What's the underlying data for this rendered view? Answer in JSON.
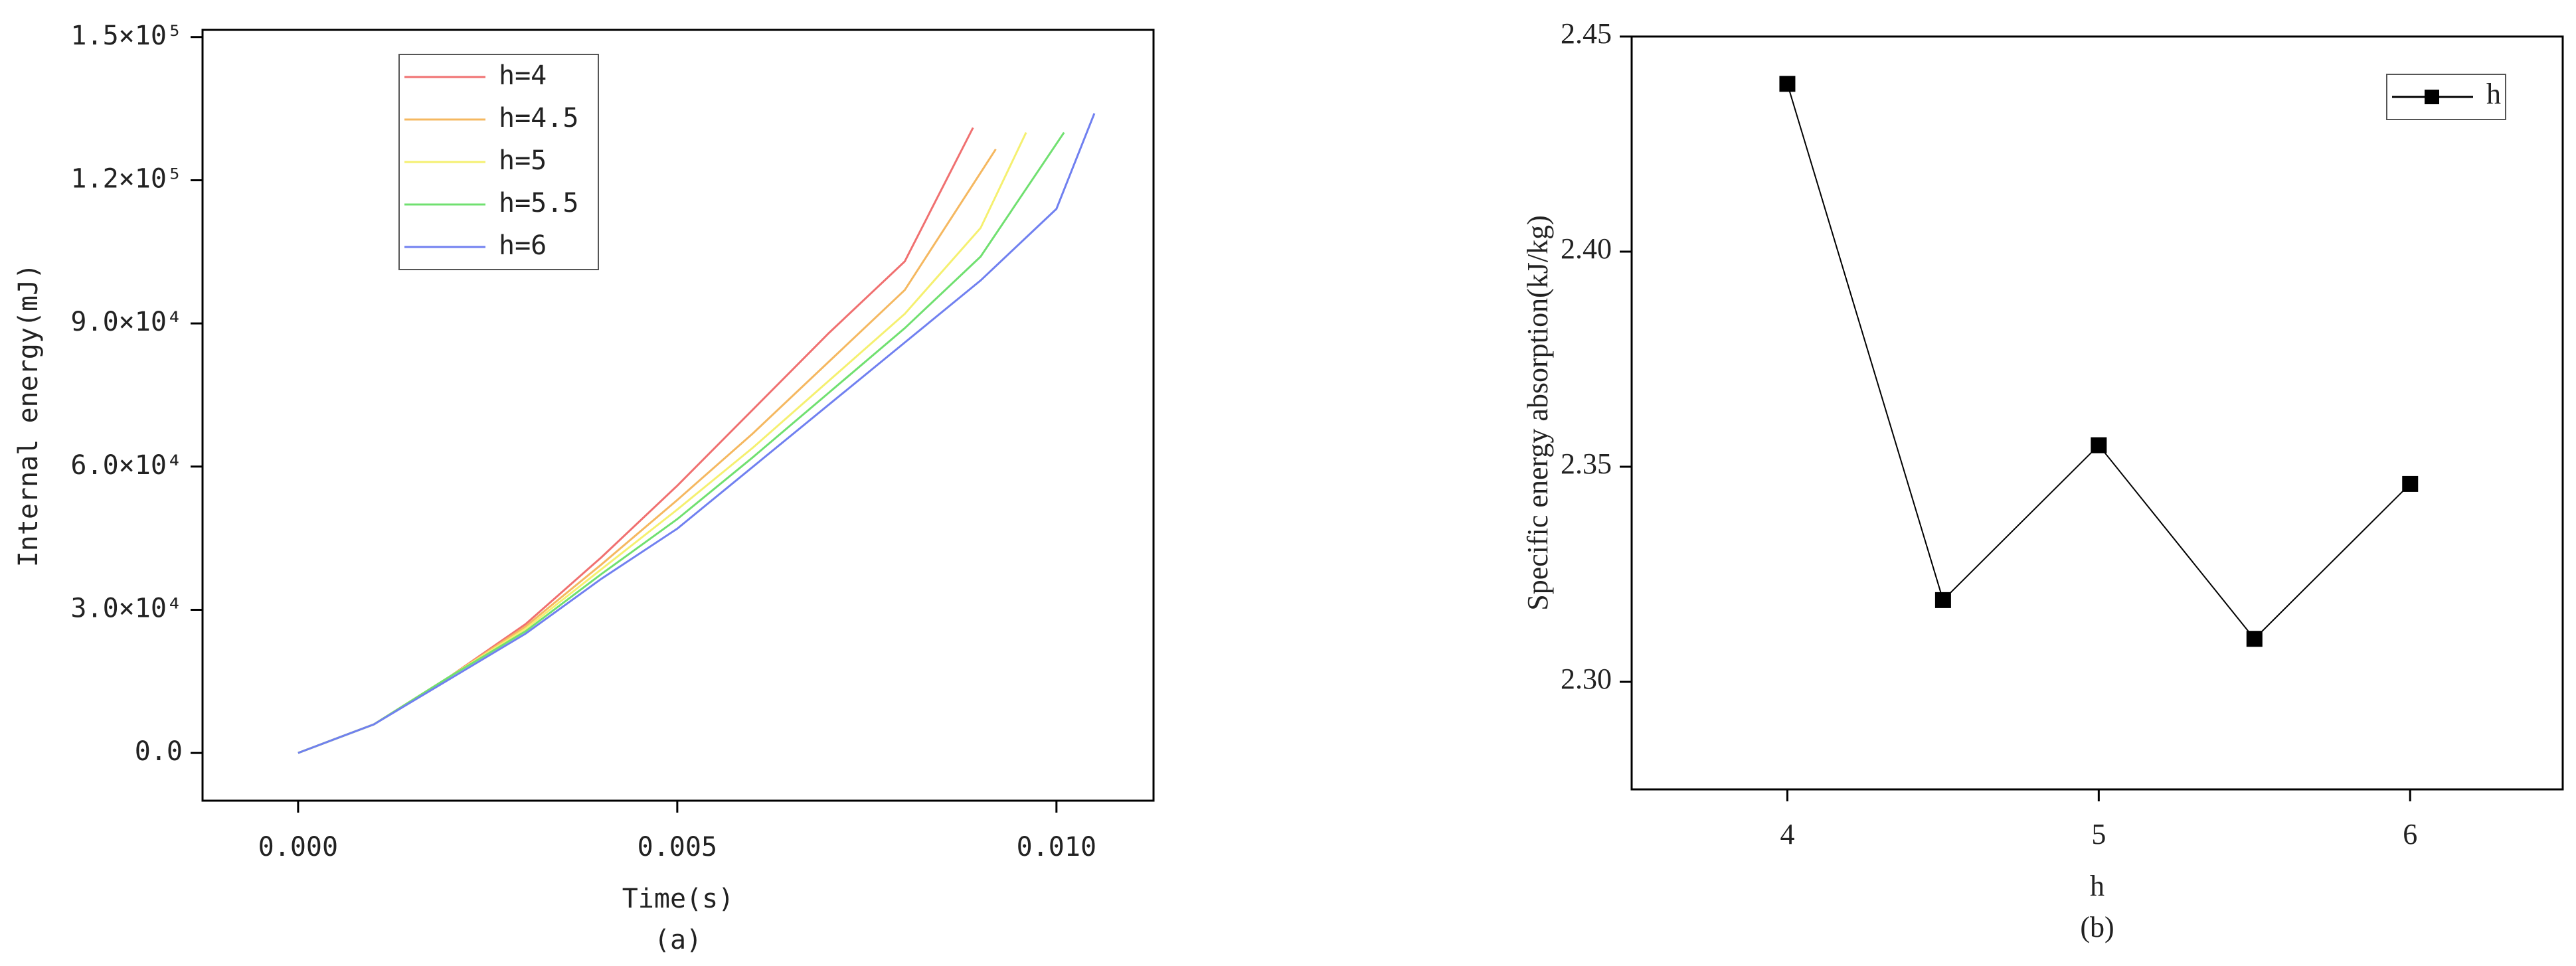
{
  "chart_data": [
    {
      "type": "line",
      "caption": "(a)",
      "x_label": "Time(s)",
      "y_label": "Internal energy(mJ)",
      "xlim": [
        -0.00126,
        0.01128
      ],
      "ylim": [
        -10000,
        151500
      ],
      "xticks": [
        {
          "value": 0,
          "label": "0.000"
        },
        {
          "value": 0.005,
          "label": "0.005"
        },
        {
          "value": 0.01,
          "label": "0.010"
        }
      ],
      "yticks": [
        {
          "value": 0,
          "label": "0.0"
        },
        {
          "value": 30000,
          "label": "3.0×10⁴"
        },
        {
          "value": 60000,
          "label": "6.0×10⁴"
        },
        {
          "value": 90000,
          "label": "9.0×10⁴"
        },
        {
          "value": 120000,
          "label": "1.2×10⁵"
        },
        {
          "value": 150000,
          "label": "1.5×10⁵"
        }
      ],
      "legend": "upper-left",
      "series": [
        {
          "name": "h=4",
          "color": "#f07070",
          "x": [
            0,
            0.001,
            0.002,
            0.003,
            0.004,
            0.005,
            0.006,
            0.007,
            0.008,
            0.0089
          ],
          "values": [
            0,
            6000,
            16000,
            27000,
            41000,
            56000,
            72000,
            88000,
            103000,
            131000
          ]
        },
        {
          "name": "h=4.5",
          "color": "#f5b860",
          "x": [
            0,
            0.001,
            0.002,
            0.003,
            0.004,
            0.005,
            0.006,
            0.007,
            0.008,
            0.0092
          ],
          "values": [
            0,
            6000,
            16000,
            26500,
            39500,
            53000,
            67000,
            82000,
            97000,
            126500
          ]
        },
        {
          "name": "h=5",
          "color": "#f5f070",
          "x": [
            0,
            0.001,
            0.002,
            0.003,
            0.004,
            0.005,
            0.006,
            0.007,
            0.008,
            0.009,
            0.0096
          ],
          "values": [
            0,
            6000,
            16000,
            26000,
            38500,
            51000,
            64000,
            78000,
            92000,
            110000,
            130000
          ]
        },
        {
          "name": "h=5.5",
          "color": "#70e070",
          "x": [
            0,
            0.001,
            0.002,
            0.003,
            0.004,
            0.005,
            0.006,
            0.007,
            0.008,
            0.009,
            0.0101
          ],
          "values": [
            0,
            6000,
            16000,
            25500,
            37500,
            49000,
            62000,
            75500,
            89000,
            104000,
            130000
          ]
        },
        {
          "name": "h=6",
          "color": "#7080f0",
          "x": [
            0,
            0.001,
            0.002,
            0.003,
            0.004,
            0.005,
            0.006,
            0.007,
            0.008,
            0.009,
            0.01,
            0.0105
          ],
          "values": [
            0,
            6000,
            15500,
            25000,
            36500,
            47000,
            60000,
            73000,
            86000,
            99000,
            114000,
            134000
          ]
        }
      ]
    },
    {
      "type": "line",
      "caption": "(b)",
      "x_label": "h",
      "y_label": "Specific energy absorption(kJ/kg)",
      "marker": "square",
      "legend": "upper-right",
      "xlim": [
        3.5,
        6.49
      ],
      "ylim": [
        2.275,
        2.45
      ],
      "xticks": [
        4,
        5,
        6
      ],
      "yticks": [
        {
          "value": 2.3,
          "label": "2.30"
        },
        {
          "value": 2.35,
          "label": "2.35"
        },
        {
          "value": 2.4,
          "label": "2.40"
        },
        {
          "value": 2.45,
          "label": "2.45"
        }
      ],
      "series": [
        {
          "name": "h",
          "color": "#000000",
          "x": [
            4,
            4.5,
            5,
            5.5,
            6
          ],
          "values": [
            2.439,
            2.319,
            2.355,
            2.31,
            2.346
          ]
        }
      ]
    }
  ]
}
